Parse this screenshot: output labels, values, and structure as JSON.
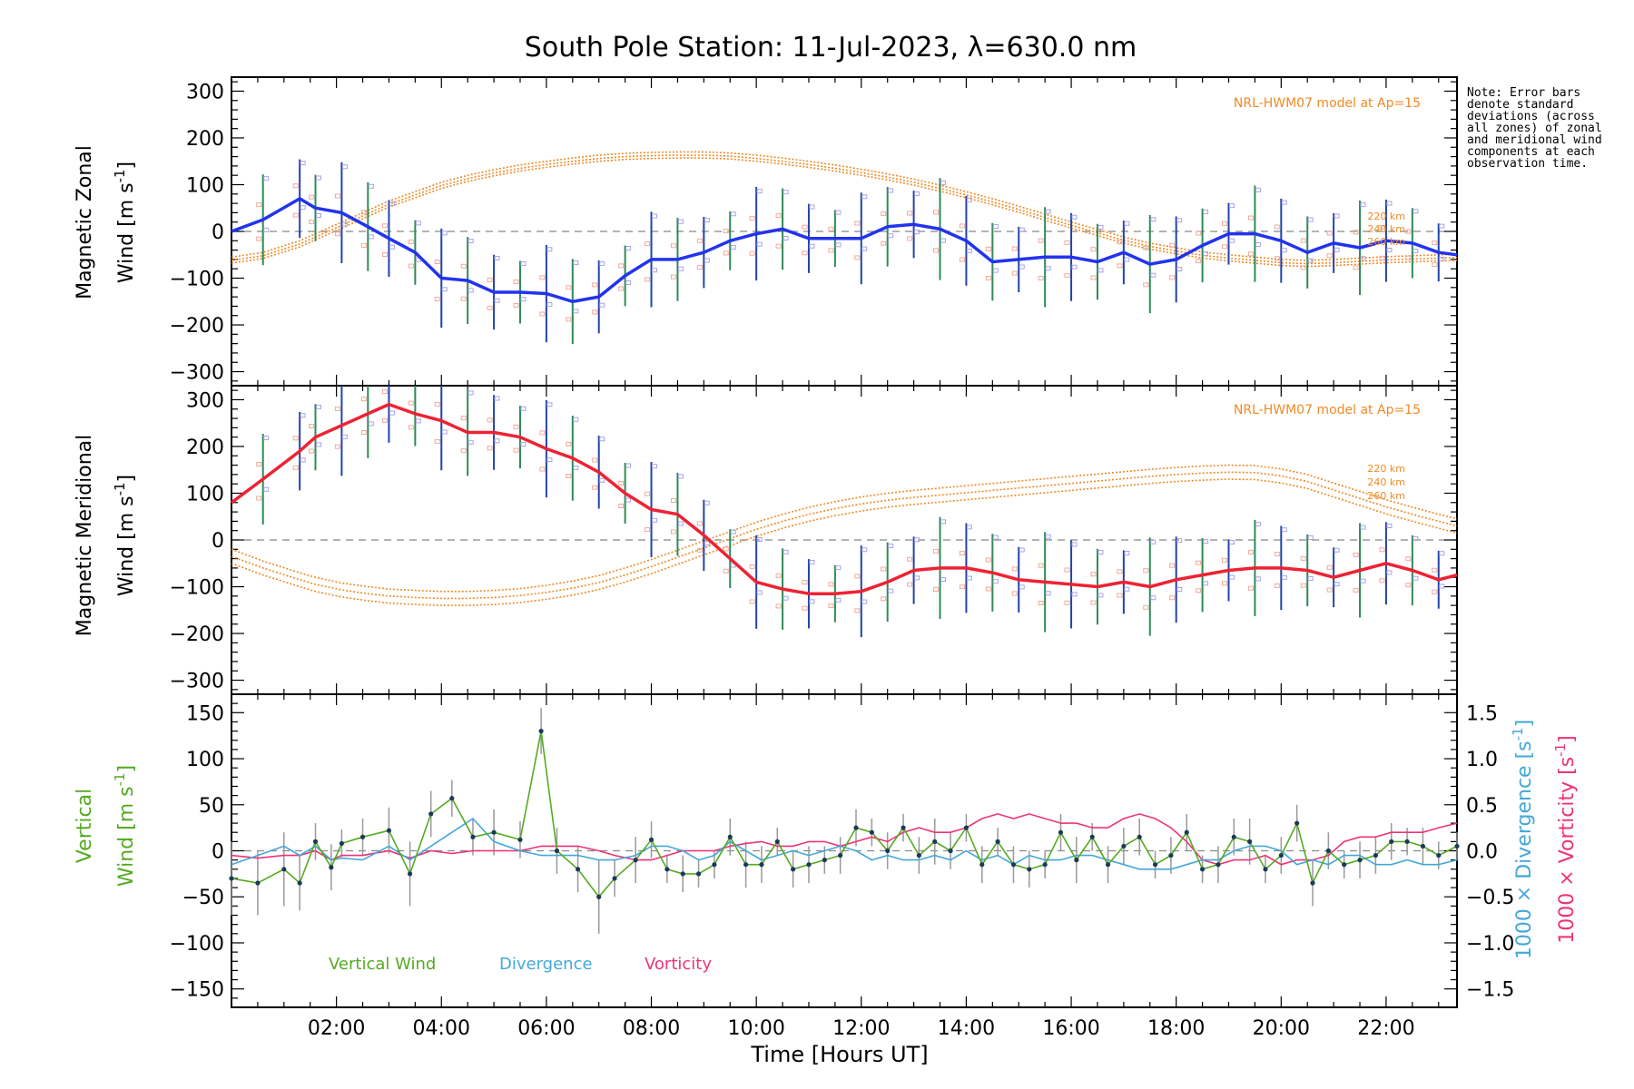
{
  "title": "South Pole Station: 11-Jul-2023, λ=630.0 nm",
  "note": "Note: Error bars denote standard deviations (across all zones) of zonal and meridional wind components at each observation time.",
  "xaxis": {
    "label": "Time [Hours UT]",
    "range": [
      0.0,
      23.35
    ],
    "ticks": [
      2,
      4,
      6,
      8,
      10,
      12,
      14,
      16,
      18,
      20,
      22
    ],
    "tick_labels": [
      "02:00",
      "04:00",
      "06:00",
      "08:00",
      "10:00",
      "12:00",
      "14:00",
      "16:00",
      "18:00",
      "20:00",
      "22:00"
    ]
  },
  "model_label": "NRL-HWM07 model at Ap=15",
  "altitude_labels": [
    "220 km",
    "240 km",
    "260 km"
  ],
  "colors": {
    "zonal": "#2233ee",
    "meridional": "#ee2233",
    "vertical": "#55aa22",
    "divergence": "#44a8d8",
    "vorticity": "#ee3377",
    "model": "#f08a24",
    "errbar_a": "#2e8b57",
    "errbar_b": "#2244aa",
    "points": "#1a3a5a"
  },
  "chart_data": [
    {
      "type": "line",
      "panel": "zonal",
      "ylabel_line1": "Magnetic Zonal",
      "ylabel_line2": "Wind [m s",
      "ylabel_sup": "-1",
      "ylabel_end": "]",
      "ylim": [
        -330,
        330
      ],
      "yticks": [
        -300,
        -200,
        -100,
        0,
        100,
        200,
        300
      ],
      "x": [
        0.0,
        0.6,
        1.3,
        1.6,
        2.1,
        2.6,
        3.0,
        3.5,
        4.0,
        4.5,
        5.0,
        5.5,
        6.0,
        6.5,
        7.0,
        7.5,
        8.0,
        8.5,
        9.0,
        9.5,
        10.0,
        10.5,
        11.0,
        11.5,
        12.0,
        12.5,
        13.0,
        13.5,
        14.0,
        14.5,
        15.0,
        15.5,
        16.0,
        16.5,
        17.0,
        17.5,
        18.0,
        18.5,
        19.0,
        19.5,
        20.0,
        20.5,
        21.0,
        21.5,
        22.0,
        22.5,
        23.0,
        23.35
      ],
      "series": [
        {
          "name": "Zonal wind",
          "values": [
            0,
            25,
            70,
            50,
            40,
            10,
            -15,
            -45,
            -100,
            -105,
            -130,
            -130,
            -133,
            -150,
            -140,
            -95,
            -60,
            -60,
            -45,
            -20,
            -5,
            5,
            -15,
            -15,
            -15,
            10,
            15,
            5,
            -20,
            -65,
            -60,
            -55,
            -55,
            -65,
            -45,
            -70,
            -60,
            -30,
            -5,
            -5,
            -20,
            -45,
            -25,
            -35,
            -20,
            -25,
            -45,
            -50
          ]
        },
        {
          "name": "Model 220 km",
          "values": [
            -55,
            -45,
            -20,
            -5,
            20,
            45,
            65,
            85,
            105,
            120,
            132,
            142,
            150,
            157,
            163,
            167,
            169,
            170,
            170,
            168,
            163,
            157,
            150,
            142,
            133,
            123,
            112,
            99,
            85,
            70,
            54,
            37,
            20,
            4,
            -12,
            -25,
            -35,
            -44,
            -50,
            -55,
            -60,
            -62,
            -60,
            -57,
            -54,
            -52,
            -50,
            -49
          ]
        },
        {
          "name": "Model 240 km",
          "values": [
            -62,
            -52,
            -27,
            -12,
            13,
            38,
            58,
            78,
            98,
            113,
            125,
            135,
            143,
            150,
            156,
            160,
            162,
            163,
            163,
            161,
            156,
            150,
            143,
            135,
            126,
            116,
            105,
            92,
            78,
            63,
            47,
            30,
            13,
            -3,
            -19,
            -32,
            -42,
            -51,
            -57,
            -62,
            -67,
            -69,
            -67,
            -64,
            -61,
            -59,
            -57,
            -56
          ]
        },
        {
          "name": "Model 260 km",
          "values": [
            -68,
            -58,
            -33,
            -18,
            7,
            32,
            52,
            72,
            92,
            107,
            119,
            129,
            137,
            144,
            150,
            154,
            156,
            157,
            157,
            155,
            150,
            144,
            137,
            129,
            120,
            110,
            99,
            86,
            72,
            57,
            41,
            24,
            7,
            -9,
            -25,
            -38,
            -48,
            -57,
            -63,
            -68,
            -73,
            -75,
            -73,
            -70,
            -67,
            -65,
            -63,
            -62
          ]
        }
      ]
    },
    {
      "type": "line",
      "panel": "meridional",
      "ylabel_line1": "Magnetic Meridional",
      "ylabel_line2": "Wind [m s",
      "ylabel_sup": "-1",
      "ylabel_end": "]",
      "ylim": [
        -330,
        330
      ],
      "yticks": [
        -300,
        -200,
        -100,
        0,
        100,
        200,
        300
      ],
      "x": [
        0.0,
        0.6,
        1.3,
        1.6,
        2.1,
        2.6,
        3.0,
        3.5,
        4.0,
        4.5,
        5.0,
        5.5,
        6.0,
        6.5,
        7.0,
        7.5,
        8.0,
        8.5,
        9.0,
        9.5,
        10.0,
        10.5,
        11.0,
        11.5,
        12.0,
        12.5,
        13.0,
        13.5,
        14.0,
        14.5,
        15.0,
        15.5,
        16.0,
        16.5,
        17.0,
        17.5,
        18.0,
        18.5,
        19.0,
        19.5,
        20.0,
        20.5,
        21.0,
        21.5,
        22.0,
        22.5,
        23.0,
        23.35
      ],
      "series": [
        {
          "name": "Meridional wind",
          "values": [
            80,
            130,
            190,
            220,
            245,
            270,
            290,
            270,
            255,
            230,
            230,
            220,
            195,
            175,
            145,
            100,
            65,
            55,
            10,
            -40,
            -90,
            -105,
            -115,
            -115,
            -110,
            -90,
            -65,
            -60,
            -60,
            -70,
            -85,
            -90,
            -95,
            -100,
            -90,
            -100,
            -85,
            -75,
            -65,
            -60,
            -60,
            -65,
            -80,
            -65,
            -50,
            -65,
            -85,
            -75
          ]
        },
        {
          "name": "Model 220 km",
          "values": [
            -20,
            -45,
            -70,
            -80,
            -92,
            -100,
            -105,
            -108,
            -110,
            -110,
            -108,
            -104,
            -97,
            -88,
            -76,
            -60,
            -42,
            -22,
            -2,
            18,
            38,
            55,
            70,
            82,
            92,
            100,
            106,
            111,
            116,
            121,
            126,
            131,
            136,
            141,
            146,
            151,
            155,
            158,
            160,
            159,
            152,
            140,
            122,
            104,
            86,
            70,
            55,
            45
          ]
        },
        {
          "name": "Model 240 km",
          "values": [
            -35,
            -60,
            -85,
            -95,
            -107,
            -115,
            -120,
            -123,
            -125,
            -125,
            -123,
            -119,
            -112,
            -103,
            -91,
            -75,
            -57,
            -37,
            -17,
            3,
            23,
            40,
            55,
            67,
            77,
            85,
            91,
            96,
            101,
            106,
            111,
            116,
            121,
            126,
            131,
            136,
            140,
            143,
            145,
            144,
            137,
            125,
            107,
            89,
            71,
            55,
            40,
            30
          ]
        },
        {
          "name": "Model 260 km",
          "values": [
            -50,
            -75,
            -100,
            -110,
            -122,
            -130,
            -135,
            -138,
            -140,
            -140,
            -138,
            -134,
            -127,
            -118,
            -106,
            -90,
            -72,
            -52,
            -32,
            -12,
            8,
            25,
            40,
            52,
            62,
            70,
            76,
            81,
            86,
            91,
            96,
            101,
            106,
            111,
            116,
            121,
            125,
            128,
            130,
            129,
            122,
            110,
            92,
            74,
            56,
            40,
            25,
            15
          ]
        }
      ]
    },
    {
      "type": "line",
      "panel": "vertical",
      "ylabel_line1": "Vertical",
      "ylabel_line2": "Wind [m s",
      "ylabel_sup": "-1",
      "ylabel_end": "]",
      "ylim": [
        -170,
        170
      ],
      "yticks": [
        -150,
        -100,
        -50,
        0,
        50,
        100,
        150
      ],
      "y2lim": [
        -1.7,
        1.7
      ],
      "y2ticks": [
        -1.5,
        -1.0,
        -0.5,
        0.0,
        0.5,
        1.0,
        1.5
      ],
      "y2tick_labels": [
        "−1.5",
        "−1.0",
        "−0.5",
        "0.0",
        "0.5",
        "1.0",
        "1.5"
      ],
      "ylabel_right_div": "1000 × Divergence [s",
      "ylabel_right_vort": "1000 × Vorticity [s",
      "ylabel_right_sup": "-1",
      "ylabel_right_end": "]",
      "legend": [
        "Vertical Wind",
        "Divergence",
        "Vorticity"
      ],
      "x": [
        0.0,
        0.5,
        1.0,
        1.3,
        1.6,
        1.9,
        2.1,
        2.5,
        3.0,
        3.4,
        3.8,
        4.2,
        4.6,
        5.0,
        5.5,
        5.9,
        6.2,
        6.6,
        7.0,
        7.3,
        7.7,
        8.0,
        8.3,
        8.6,
        8.9,
        9.2,
        9.5,
        9.8,
        10.1,
        10.4,
        10.7,
        11.0,
        11.3,
        11.6,
        11.9,
        12.2,
        12.5,
        12.8,
        13.1,
        13.4,
        13.7,
        14.0,
        14.3,
        14.6,
        14.9,
        15.2,
        15.5,
        15.8,
        16.1,
        16.4,
        16.7,
        17.0,
        17.3,
        17.6,
        17.9,
        18.2,
        18.5,
        18.8,
        19.1,
        19.4,
        19.7,
        20.0,
        20.3,
        20.6,
        20.9,
        21.2,
        21.5,
        21.8,
        22.1,
        22.4,
        22.7,
        23.0,
        23.35
      ],
      "series": [
        {
          "name": "Vertical Wind",
          "values": [
            -30,
            -35,
            -20,
            -35,
            10,
            -18,
            8,
            15,
            22,
            -25,
            40,
            57,
            15,
            20,
            12,
            130,
            0,
            -20,
            -50,
            -30,
            -10,
            12,
            -20,
            -25,
            -25,
            -15,
            15,
            -15,
            -15,
            10,
            -20,
            -15,
            -10,
            -5,
            25,
            20,
            0,
            25,
            -5,
            10,
            0,
            25,
            -15,
            10,
            -15,
            -20,
            -15,
            20,
            -10,
            15,
            -15,
            5,
            15,
            -15,
            -5,
            20,
            -20,
            -15,
            15,
            10,
            -20,
            -5,
            30,
            -35,
            0,
            -15,
            -10,
            -5,
            10,
            10,
            5,
            -5,
            5
          ]
        },
        {
          "name": "Divergence",
          "values": [
            -0.15,
            -0.05,
            0.05,
            -0.05,
            0.05,
            -0.1,
            -0.08,
            -0.1,
            0.05,
            -0.1,
            0.05,
            0.2,
            0.35,
            0.1,
            0.0,
            -0.05,
            -0.05,
            -0.05,
            -0.1,
            -0.1,
            -0.05,
            0.05,
            0.05,
            0.0,
            -0.1,
            -0.05,
            0.1,
            0.0,
            -0.1,
            -0.05,
            0.0,
            -0.05,
            0.0,
            0.05,
            0.0,
            -0.1,
            -0.05,
            -0.1,
            -0.1,
            -0.05,
            -0.1,
            0.0,
            -0.1,
            -0.05,
            -0.15,
            -0.05,
            -0.1,
            -0.1,
            -0.05,
            -0.05,
            -0.1,
            -0.15,
            -0.2,
            -0.2,
            -0.2,
            -0.15,
            -0.1,
            -0.1,
            0.0,
            0.05,
            0.05,
            0.0,
            -0.15,
            -0.1,
            -0.15,
            -0.05,
            -0.05,
            -0.15,
            -0.15,
            -0.1,
            -0.15,
            -0.15,
            -0.1
          ]
        },
        {
          "name": "Vorticity",
          "values": [
            -0.05,
            -0.08,
            -0.05,
            -0.05,
            0.0,
            -0.1,
            -0.05,
            -0.05,
            0.0,
            -0.08,
            0.0,
            -0.03,
            0.0,
            0.0,
            0.0,
            0.05,
            0.05,
            0.05,
            0.0,
            -0.05,
            -0.1,
            -0.1,
            -0.05,
            0.0,
            0.0,
            0.0,
            0.05,
            0.08,
            0.1,
            0.05,
            0.05,
            0.1,
            0.1,
            0.05,
            0.1,
            0.15,
            0.1,
            0.2,
            0.25,
            0.2,
            0.2,
            0.25,
            0.35,
            0.4,
            0.35,
            0.4,
            0.35,
            0.3,
            0.3,
            0.25,
            0.25,
            0.35,
            0.4,
            0.35,
            0.25,
            0.1,
            -0.1,
            -0.15,
            -0.1,
            -0.1,
            -0.05,
            -0.15,
            -0.1,
            -0.1,
            -0.05,
            0.1,
            0.15,
            0.15,
            0.2,
            0.2,
            0.2,
            0.25,
            0.3
          ]
        }
      ],
      "vertical_err": [
        40,
        35,
        40,
        30,
        20,
        25,
        15,
        20,
        25,
        35,
        25,
        20,
        20,
        25,
        20,
        25,
        25,
        25,
        40,
        20,
        25,
        20,
        15,
        20,
        15,
        15,
        20,
        25,
        20,
        15,
        20,
        20,
        15,
        20,
        20,
        15,
        20,
        15,
        20,
        25,
        20,
        15,
        20,
        15,
        20,
        20,
        15,
        20,
        25,
        15,
        20,
        20,
        20,
        15,
        20,
        20,
        15,
        20,
        20,
        25,
        15,
        20,
        20,
        25,
        20,
        15,
        20,
        20,
        20,
        15,
        20,
        15,
        15
      ]
    }
  ]
}
